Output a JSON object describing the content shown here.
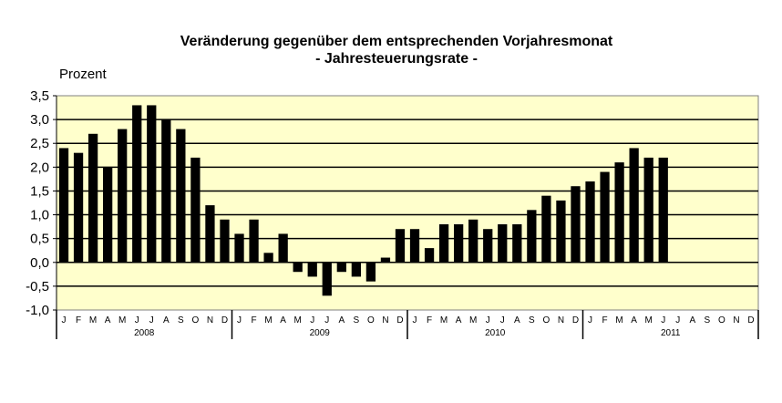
{
  "chart_data": {
    "type": "bar",
    "title": "Veränderung gegenüber dem entsprechenden Vorjahresmonat",
    "subtitle": "- Jahresteuerungsrate -",
    "ylabel": "Prozent",
    "xlabel": "",
    "ylim": [
      -1.0,
      3.5
    ],
    "yticks": [
      "3,5",
      "3,0",
      "2,5",
      "2,0",
      "1,5",
      "1,0",
      "0,5",
      "0,0",
      "-0,5",
      "-1,0"
    ],
    "grid": true,
    "years": [
      "2008",
      "2009",
      "2010",
      "2011"
    ],
    "month_labels": [
      "J",
      "F",
      "M",
      "A",
      "M",
      "J",
      "J",
      "A",
      "S",
      "O",
      "N",
      "D"
    ],
    "values": [
      2.4,
      2.3,
      2.7,
      2.0,
      2.8,
      3.3,
      3.3,
      3.0,
      2.8,
      2.2,
      1.2,
      0.9,
      0.6,
      0.9,
      0.2,
      0.6,
      -0.2,
      -0.3,
      -0.7,
      -0.2,
      -0.3,
      -0.4,
      0.1,
      0.7,
      0.7,
      0.3,
      0.8,
      0.8,
      0.9,
      0.7,
      0.8,
      0.8,
      1.1,
      1.4,
      1.3,
      1.6,
      1.7,
      1.9,
      2.1,
      2.4,
      2.2,
      2.2,
      null,
      null,
      null,
      null,
      null,
      null
    ],
    "colors": {
      "plot_background": "#FFFFCC",
      "bar": "#000000"
    }
  }
}
